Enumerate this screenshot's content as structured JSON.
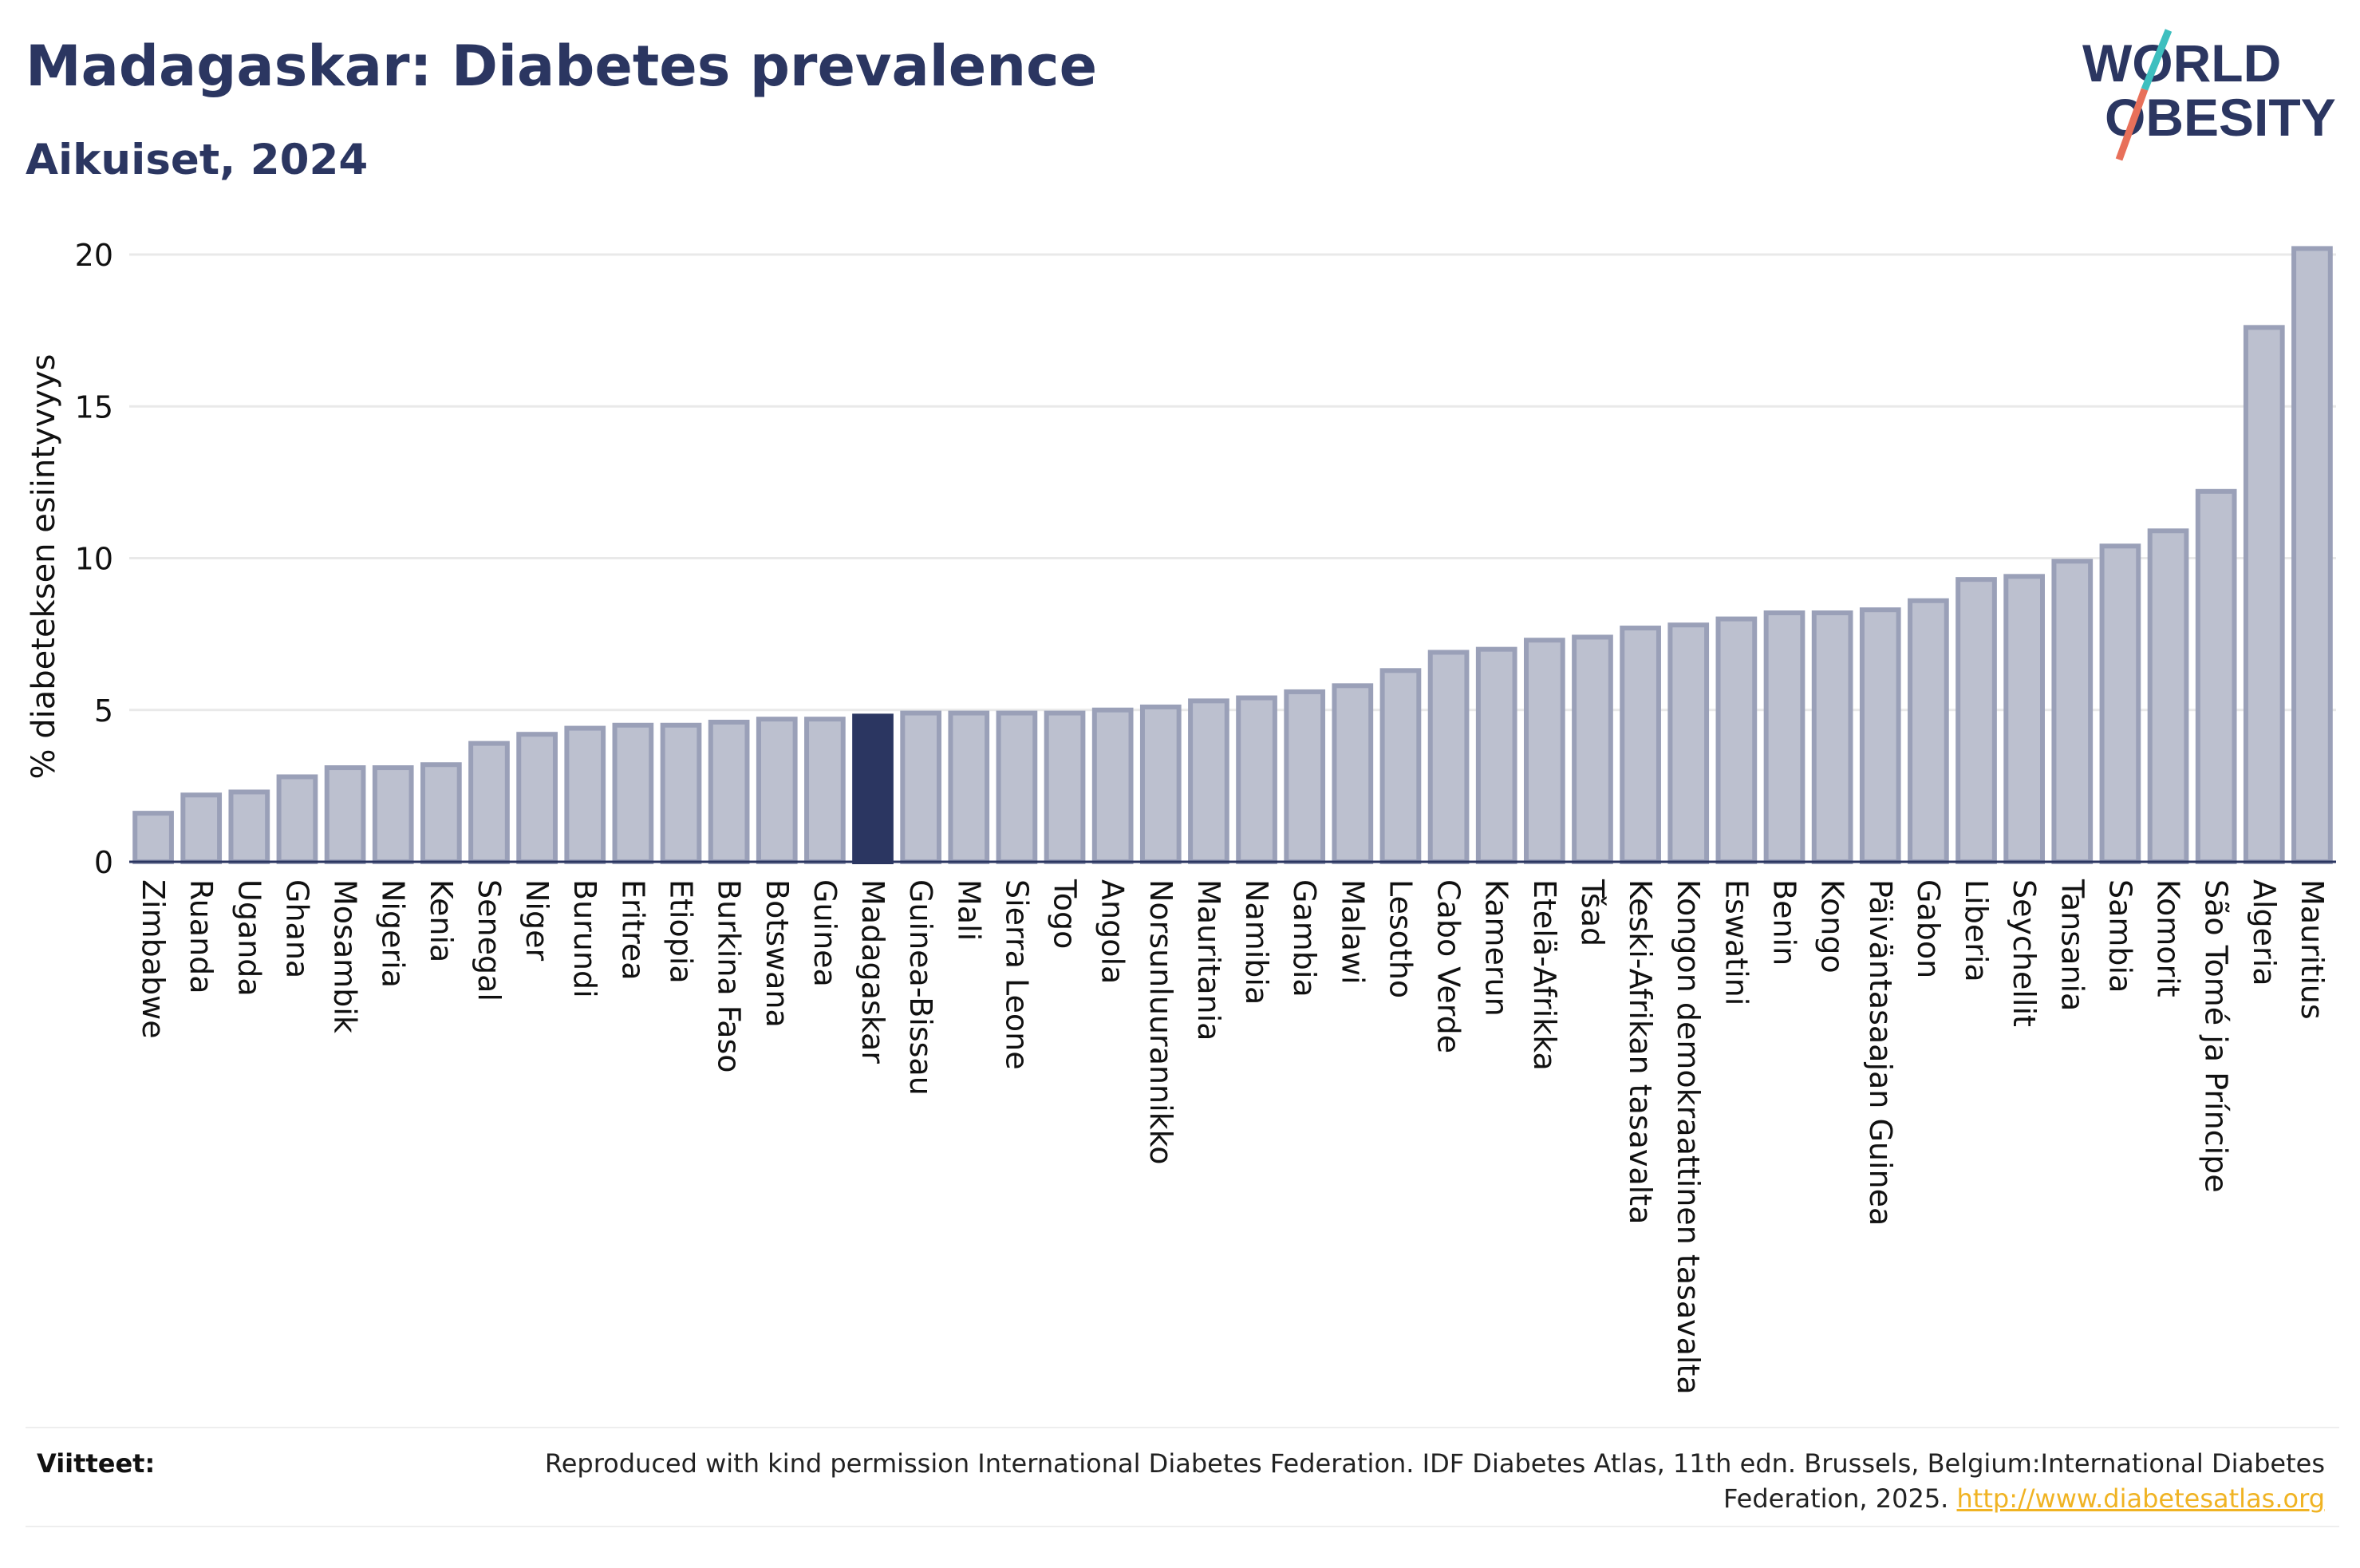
{
  "header": {
    "title": "Madagaskar: Diabetes prevalence",
    "subtitle": "Aikuiset, 2024"
  },
  "logo": {
    "line1": "WORLD",
    "line2": "OBESITY",
    "text_color": "#2b3661",
    "slash_color_top": "#3ebfbf",
    "slash_color_bottom": "#e8705a"
  },
  "footer": {
    "label": "Viitteet:",
    "text": "Reproduced with kind permission International Diabetes Federation. IDF Diabetes Atlas, 11th edn. Brussels, Belgium:International Diabetes Federation, 2025.",
    "link": "http://www.diabetesatlas.org"
  },
  "colors": {
    "bar_fill": "#bcc0cf",
    "bar_stroke": "#9aa0b8",
    "highlight": "#2b3661",
    "grid": "#e9e9e9",
    "axis": "#2b3661"
  },
  "chart_data": {
    "type": "bar",
    "ylabel": "% diabeteksen esiintyvyys",
    "ylim": [
      0,
      20.5
    ],
    "yticks": [
      0,
      5,
      10,
      15,
      20
    ],
    "grid": true,
    "highlight": "Madagaskar",
    "categories": [
      "Zimbabwe",
      "Ruanda",
      "Uganda",
      "Ghana",
      "Mosambik",
      "Nigeria",
      "Kenia",
      "Senegal",
      "Niger",
      "Burundi",
      "Eritrea",
      "Etiopia",
      "Burkina Faso",
      "Botswana",
      "Guinea",
      "Madagaskar",
      "Guinea-Bissau",
      "Mali",
      "Sierra Leone",
      "Togo",
      "Angola",
      "Norsunluurannikko",
      "Mauritania",
      "Namibia",
      "Gambia",
      "Malawi",
      "Lesotho",
      "Cabo Verde",
      "Kamerun",
      "Etelä-Afrikka",
      "Tšad",
      "Keski-Afrikan tasavalta",
      "Kongon demokraattinen tasavalta",
      "Eswatini",
      "Benin",
      "Kongo",
      "Päiväntasaajan Guinea",
      "Gabon",
      "Liberia",
      "Seychellit",
      "Tansania",
      "Sambia",
      "Komorit",
      "São Tomé ja Príncipe",
      "Algeria",
      "Mauritius"
    ],
    "values": [
      1.6,
      2.2,
      2.3,
      2.8,
      3.1,
      3.1,
      3.2,
      3.9,
      4.2,
      4.4,
      4.5,
      4.5,
      4.6,
      4.7,
      4.7,
      4.8,
      4.9,
      4.9,
      4.9,
      4.9,
      5.0,
      5.1,
      5.3,
      5.4,
      5.6,
      5.8,
      6.3,
      6.9,
      7.0,
      7.3,
      7.4,
      7.7,
      7.8,
      8.0,
      8.2,
      8.2,
      8.3,
      8.6,
      9.3,
      9.4,
      9.9,
      10.4,
      10.9,
      12.2,
      17.6,
      20.2
    ]
  }
}
